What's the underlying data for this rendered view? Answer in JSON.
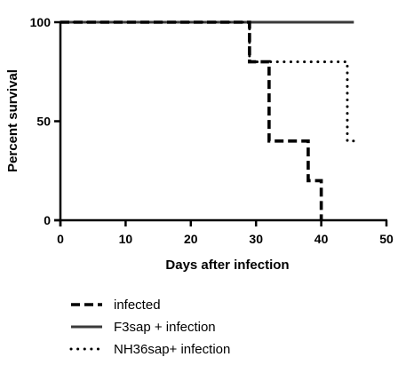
{
  "chart_data": {
    "type": "line",
    "step": true,
    "title": "",
    "xlabel": "Days after infection",
    "ylabel": "Percent survival",
    "xlim": [
      0,
      50
    ],
    "ylim": [
      0,
      100
    ],
    "xticks": [
      0,
      10,
      20,
      30,
      40,
      50
    ],
    "yticks": [
      0,
      50,
      100
    ],
    "grid": false,
    "legend_position": "bottom-left",
    "series": [
      {
        "name": "infected",
        "style": "dashed",
        "color": "#000000",
        "points": [
          [
            0,
            100
          ],
          [
            29,
            100
          ],
          [
            29,
            80
          ],
          [
            32,
            80
          ],
          [
            32,
            40
          ],
          [
            38,
            40
          ],
          [
            38,
            20
          ],
          [
            40,
            20
          ],
          [
            40,
            0
          ]
        ]
      },
      {
        "name": "F3sap + infection",
        "style": "solid",
        "color": "#3a3a3a",
        "points": [
          [
            0,
            100
          ],
          [
            45,
            100
          ]
        ]
      },
      {
        "name": "NH36sap+ infection",
        "style": "dotted",
        "color": "#000000",
        "points": [
          [
            0,
            100
          ],
          [
            29,
            100
          ],
          [
            29,
            80
          ],
          [
            44,
            80
          ],
          [
            44,
            40
          ],
          [
            45,
            40
          ]
        ]
      }
    ]
  }
}
